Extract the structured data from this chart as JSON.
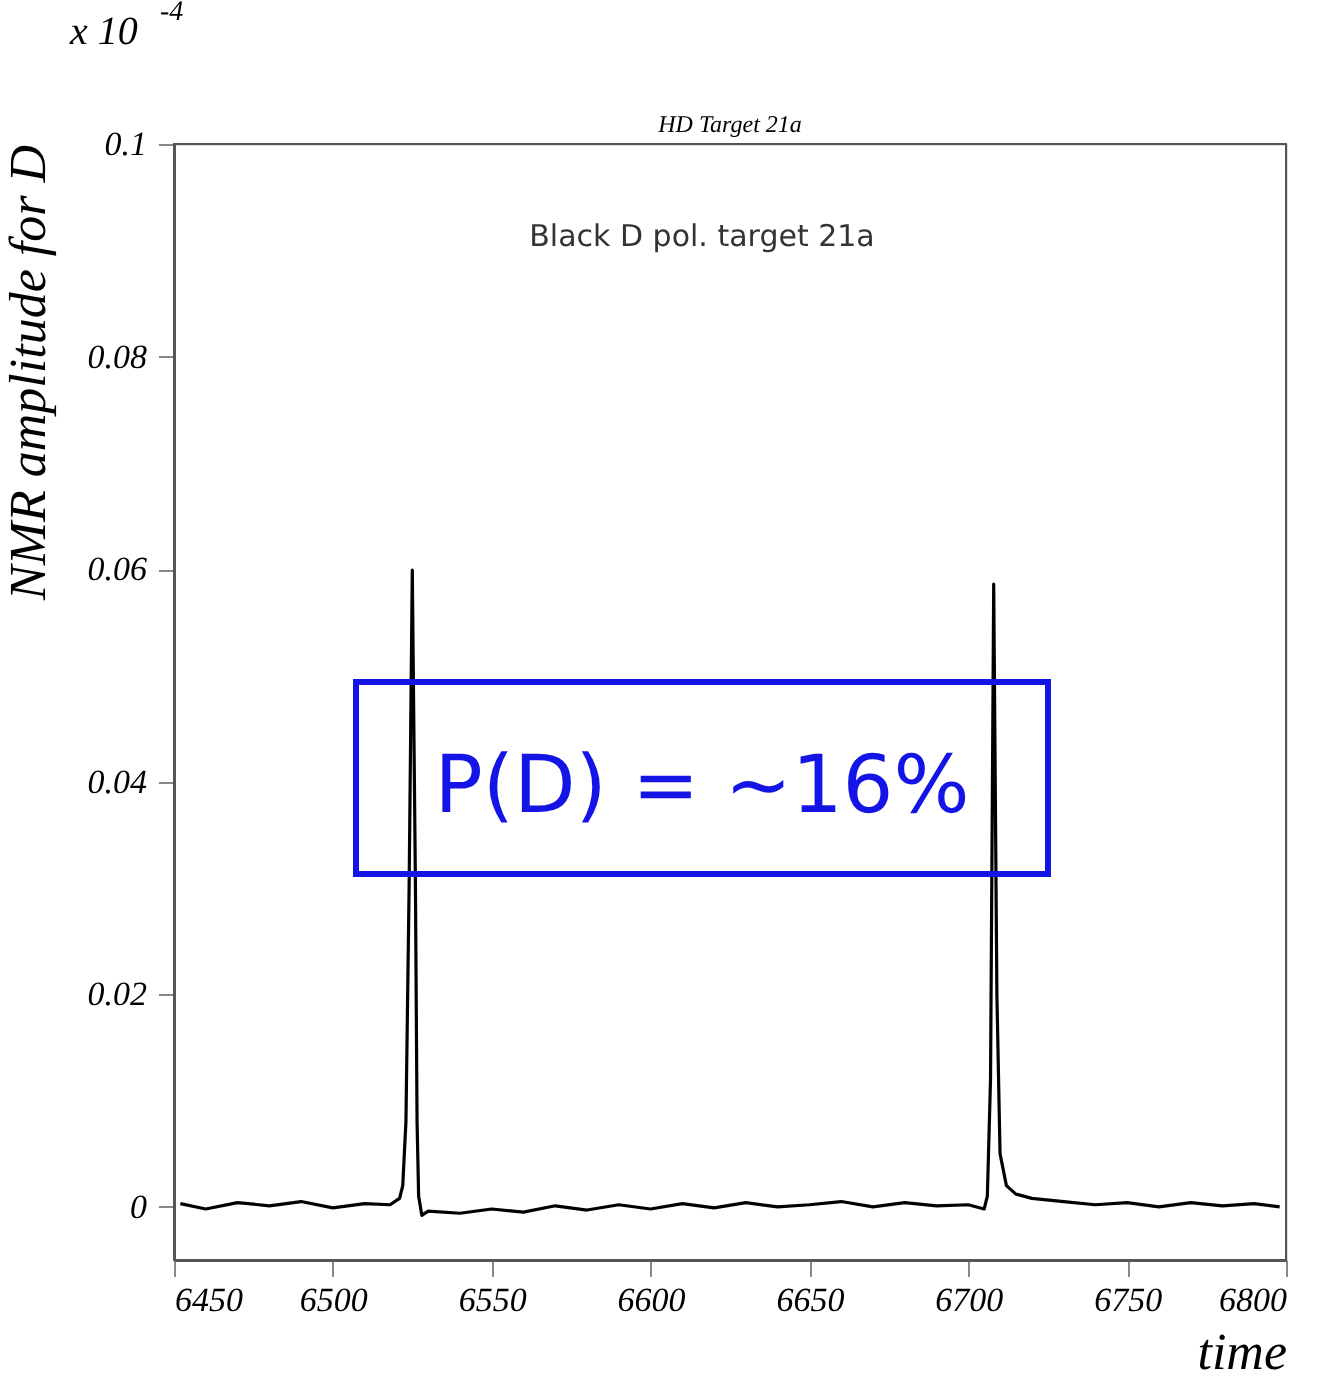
{
  "chart_data": {
    "type": "line",
    "title": "HD Target 21a",
    "xlabel": "time",
    "ylabel": "NMR amplitude for D",
    "annotations": [
      "x 10$^{-4}$",
      "Black D pol. target 21a",
      "P(D) = ~16%"
    ],
    "x": [
      6452,
      6460,
      6470,
      6480,
      6490,
      6500,
      6510,
      6518,
      6521,
      6522,
      6523,
      6524,
      6525,
      6526,
      6526.5,
      6527,
      6528,
      6530,
      6540,
      6550,
      6560,
      6570,
      6580,
      6590,
      6600,
      6610,
      6620,
      6630,
      6640,
      6650,
      6660,
      6670,
      6680,
      6690,
      6700,
      6705,
      6706,
      6707,
      6708,
      6709,
      6710,
      6712,
      6715,
      6720,
      6730,
      6740,
      6750,
      6760,
      6770,
      6780,
      6790,
      6798
    ],
    "series": [
      {
        "color": "#000000",
        "values": [
          0.0003,
          -0.0002,
          0.0004,
          0.0001,
          0.0005,
          -0.0001,
          0.0003,
          0.0002,
          0.0008,
          0.002,
          0.008,
          0.03,
          0.0599,
          0.03,
          0.008,
          0.001,
          -0.0008,
          -0.0004,
          -0.0006,
          -0.0002,
          -0.0005,
          0.0001,
          -0.0003,
          0.0002,
          -0.0002,
          0.0003,
          -0.0001,
          0.0004,
          0.0,
          0.0002,
          0.0005,
          0.0,
          0.0004,
          0.0001,
          0.0002,
          -0.0002,
          0.001,
          0.012,
          0.0586,
          0.02,
          0.005,
          0.002,
          0.0012,
          0.0008,
          0.0005,
          0.0002,
          0.0004,
          0.0,
          0.0004,
          0.0001,
          0.0003,
          0.0
        ]
      }
    ],
    "xlim": [
      6450,
      6800
    ],
    "xticks": [
      6450,
      6500,
      6550,
      6600,
      6650,
      6700,
      6750,
      6800
    ],
    "ylim": [
      -0.005,
      0.1
    ],
    "yticks": [
      0,
      0.02,
      0.04,
      0.06,
      0.08,
      0.1
    ],
    "grid": false,
    "legend": false,
    "marker": "none",
    "line_style": "solid"
  }
}
